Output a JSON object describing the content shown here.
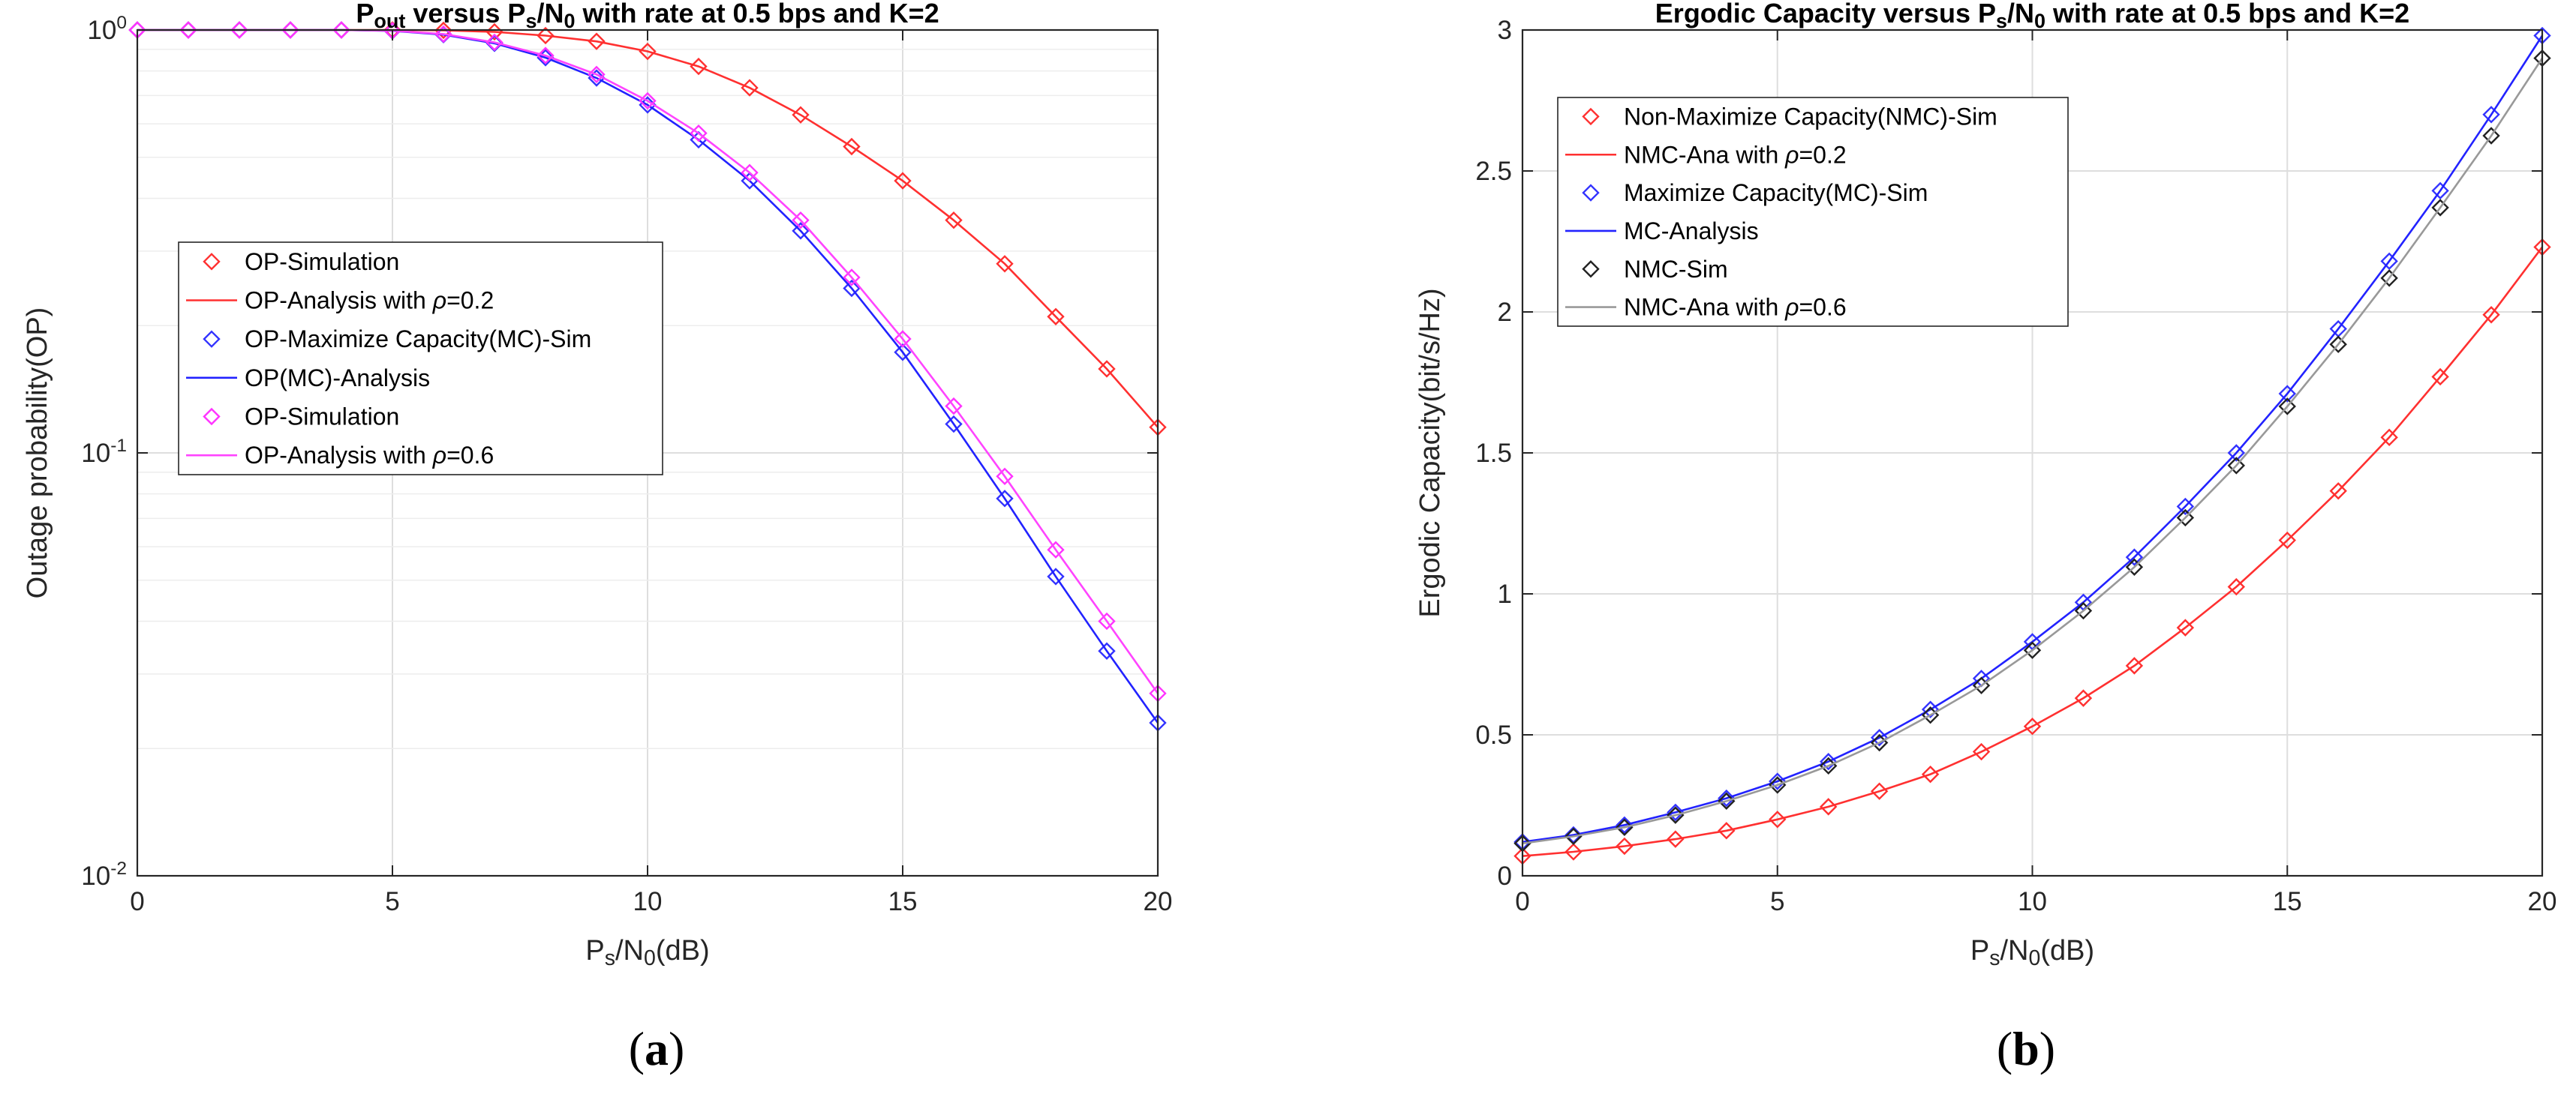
{
  "chart_data": [
    {
      "type": "line",
      "panel": "a",
      "caption_open": "(",
      "caption_letter": "a",
      "caption_close": ")",
      "title_parts": [
        "P",
        "out",
        " versus P",
        "s",
        "/N",
        "0",
        " with rate at 0.5 bps and K=2"
      ],
      "xlabel_parts": [
        "P",
        "s",
        "/N",
        "0",
        "(dB)"
      ],
      "ylabel": "Outage probability(OP)",
      "xlim": [
        0,
        20
      ],
      "ylim": [
        0.01,
        1
      ],
      "yscale": "log",
      "xticks": [
        0,
        5,
        10,
        15,
        20
      ],
      "yticks": [
        {
          "value": 1,
          "base": "10",
          "exp": "0"
        },
        {
          "value": 0.1,
          "base": "10",
          "exp": "-1"
        },
        {
          "value": 0.01,
          "base": "10",
          "exp": "-2"
        }
      ],
      "grid": true,
      "legend_position": "middle-left",
      "x": [
        0,
        1,
        2,
        3,
        4,
        5,
        6,
        7,
        8,
        9,
        10,
        11,
        12,
        13,
        14,
        15,
        16,
        17,
        18,
        19,
        20
      ],
      "series": [
        {
          "name": "OP-Simulation",
          "label": "OP-Simulation",
          "kind": "marker",
          "color": "#ff3030",
          "values": [
            1,
            1,
            1,
            1,
            1,
            1,
            0.998,
            0.99,
            0.97,
            0.94,
            0.89,
            0.82,
            0.73,
            0.63,
            0.53,
            0.44,
            0.355,
            0.28,
            0.21,
            0.158,
            0.115
          ]
        },
        {
          "name": "OP-Analysis rho=0.2",
          "label_main": "OP-Analysis with ",
          "label_sym": "ρ",
          "label_tail": "=0.2",
          "kind": "line",
          "color": "#ff3030",
          "values": [
            1,
            1,
            1,
            1,
            1,
            1,
            0.998,
            0.99,
            0.97,
            0.94,
            0.89,
            0.82,
            0.73,
            0.63,
            0.53,
            0.44,
            0.355,
            0.28,
            0.21,
            0.158,
            0.115
          ]
        },
        {
          "name": "OP-Maximize Capacity(MC)-Sim",
          "label": "OP-Maximize Capacity(MC)-Sim",
          "kind": "marker",
          "color": "#3333ff",
          "values": [
            1,
            1,
            1,
            1,
            1,
            0.995,
            0.975,
            0.93,
            0.86,
            0.77,
            0.665,
            0.55,
            0.44,
            0.335,
            0.245,
            0.173,
            0.117,
            0.078,
            0.051,
            0.034,
            0.023
          ]
        },
        {
          "name": "OP(MC)-Analysis",
          "label": "OP(MC)-Analysis",
          "kind": "line",
          "color": "#2222ff",
          "values": [
            1,
            1,
            1,
            1,
            1,
            0.995,
            0.975,
            0.93,
            0.86,
            0.77,
            0.665,
            0.55,
            0.44,
            0.335,
            0.245,
            0.173,
            0.117,
            0.078,
            0.051,
            0.034,
            0.023
          ]
        },
        {
          "name": "OP-Simulation rho=0.6",
          "label": "OP-Simulation",
          "kind": "marker",
          "color": "#ff33ff",
          "values": [
            1,
            1,
            1,
            1,
            1,
            0.996,
            0.978,
            0.935,
            0.87,
            0.785,
            0.68,
            0.57,
            0.46,
            0.355,
            0.26,
            0.186,
            0.129,
            0.088,
            0.059,
            0.04,
            0.027
          ]
        },
        {
          "name": "OP-Analysis rho=0.6",
          "label_main": "OP-Analysis with ",
          "label_sym": "ρ",
          "label_tail": "=0.6",
          "kind": "line",
          "color": "#ff44ff",
          "values": [
            1,
            1,
            1,
            1,
            1,
            0.996,
            0.978,
            0.935,
            0.87,
            0.785,
            0.68,
            0.57,
            0.46,
            0.355,
            0.26,
            0.186,
            0.129,
            0.088,
            0.059,
            0.04,
            0.027
          ]
        }
      ]
    },
    {
      "type": "line",
      "panel": "b",
      "caption_open": "(",
      "caption_letter": "b",
      "caption_close": ")",
      "title_parts": [
        "Ergodic Capacity versus P",
        "s",
        "/N",
        "0",
        " with rate at 0.5 bps and K=2"
      ],
      "xlabel_parts": [
        "P",
        "s",
        "/N",
        "0",
        "(dB)"
      ],
      "ylabel": "Ergodic Capacity(bit/s/Hz)",
      "xlim": [
        0,
        20
      ],
      "ylim": [
        0,
        3
      ],
      "yscale": "linear",
      "xticks": [
        0,
        5,
        10,
        15,
        20
      ],
      "yticks": [
        0,
        0.5,
        1,
        1.5,
        2,
        2.5,
        3
      ],
      "grid": true,
      "legend_position": "top-left",
      "x": [
        0,
        1,
        2,
        3,
        4,
        5,
        6,
        7,
        8,
        9,
        10,
        11,
        12,
        13,
        14,
        15,
        16,
        17,
        18,
        19,
        20
      ],
      "series": [
        {
          "name": "Non-Maximize Capacity(NMC)-Sim",
          "label": "Non-Maximize Capacity(NMC)-Sim",
          "kind": "marker",
          "color": "#ff3030",
          "values": [
            0.07,
            0.085,
            0.105,
            0.13,
            0.16,
            0.2,
            0.245,
            0.3,
            0.36,
            0.44,
            0.53,
            0.63,
            0.745,
            0.88,
            1.025,
            1.19,
            1.365,
            1.555,
            1.77,
            1.99,
            2.23
          ]
        },
        {
          "name": "NMC-Ana rho=0.2",
          "label_main": "NMC-Ana with ",
          "label_sym": "ρ",
          "label_tail": "=0.2",
          "kind": "line",
          "color": "#ff3030",
          "values": [
            0.07,
            0.085,
            0.105,
            0.13,
            0.16,
            0.2,
            0.245,
            0.3,
            0.36,
            0.44,
            0.53,
            0.63,
            0.745,
            0.88,
            1.025,
            1.19,
            1.365,
            1.555,
            1.77,
            1.99,
            2.23
          ]
        },
        {
          "name": "Maximize Capacity(MC)-Sim",
          "label": "Maximize Capacity(MC)-Sim",
          "kind": "marker",
          "color": "#3333ff",
          "values": [
            0.12,
            0.145,
            0.18,
            0.225,
            0.275,
            0.335,
            0.405,
            0.49,
            0.59,
            0.7,
            0.83,
            0.97,
            1.13,
            1.31,
            1.5,
            1.71,
            1.94,
            2.18,
            2.43,
            2.7,
            2.98
          ]
        },
        {
          "name": "MC-Analysis",
          "label": "MC-Analysis",
          "kind": "line",
          "color": "#2222ff",
          "values": [
            0.12,
            0.145,
            0.18,
            0.225,
            0.275,
            0.335,
            0.405,
            0.49,
            0.59,
            0.7,
            0.83,
            0.97,
            1.13,
            1.31,
            1.5,
            1.71,
            1.94,
            2.18,
            2.43,
            2.7,
            2.98
          ]
        },
        {
          "name": "NMC-Sim",
          "label": "NMC-Sim",
          "kind": "marker",
          "color": "#222222",
          "values": [
            0.115,
            0.14,
            0.172,
            0.215,
            0.265,
            0.322,
            0.39,
            0.472,
            0.57,
            0.675,
            0.8,
            0.94,
            1.095,
            1.27,
            1.455,
            1.665,
            1.885,
            2.12,
            2.37,
            2.625,
            2.9
          ]
        },
        {
          "name": "NMC-Ana rho=0.6",
          "label_main": "NMC-Ana with ",
          "label_sym": "ρ",
          "label_tail": "=0.6",
          "kind": "line",
          "color": "#999999",
          "values": [
            0.115,
            0.14,
            0.172,
            0.215,
            0.265,
            0.322,
            0.39,
            0.472,
            0.57,
            0.675,
            0.8,
            0.94,
            1.095,
            1.27,
            1.455,
            1.665,
            1.885,
            2.12,
            2.37,
            2.625,
            2.9
          ]
        }
      ]
    }
  ]
}
